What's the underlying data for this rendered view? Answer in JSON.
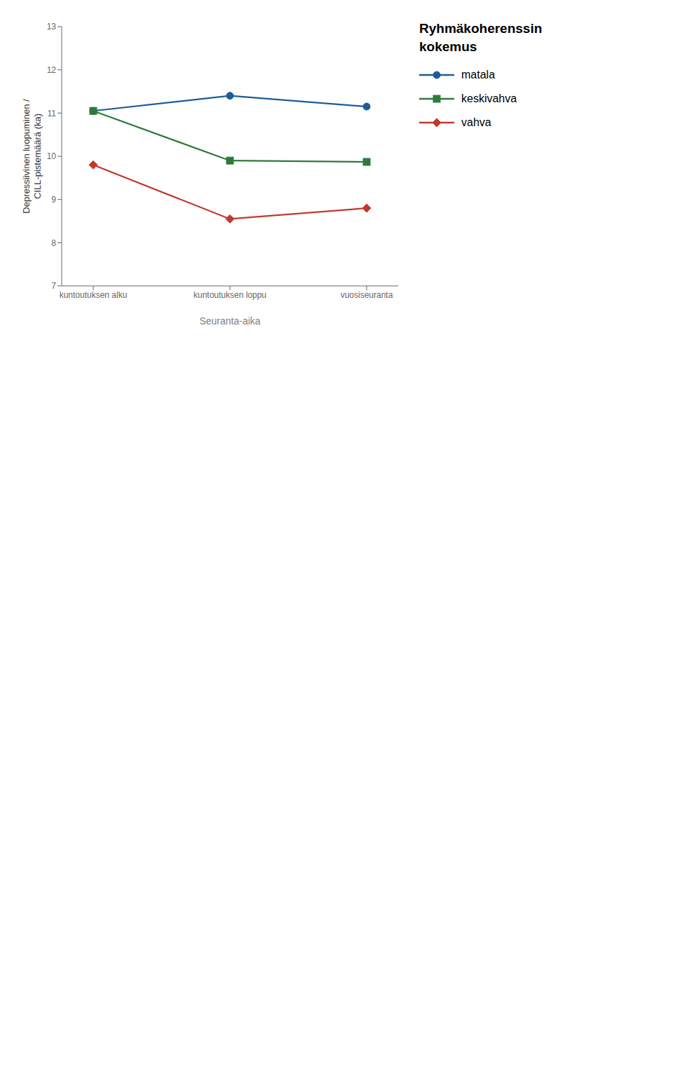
{
  "chart_data": {
    "type": "line",
    "title": "Ryhmäkoherenssin\nkokemus",
    "xlabel": "Seuranta-aika",
    "ylabel": "Depressiivinen luopuminen /\nCILL-pistemäärä (ka)",
    "categories": [
      "kuntoutuksen alku",
      "kuntoutuksen loppu",
      "vuosiseuranta"
    ],
    "series": [
      {
        "name": "matala",
        "color": "#1b5c99",
        "values": [
          11.05,
          11.4,
          11.15
        ],
        "marker": "circle"
      },
      {
        "name": "keskivahva",
        "color": "#2d7a3a",
        "values": [
          11.05,
          9.9,
          9.87
        ],
        "marker": "square"
      },
      {
        "name": "vahva",
        "color": "#c0392b",
        "values": [
          9.8,
          8.55,
          8.8
        ],
        "marker": "diamond"
      }
    ],
    "ylim": [
      7,
      13
    ],
    "yticks": [
      7,
      8,
      9,
      10,
      11,
      12,
      13
    ],
    "grid": false,
    "legend": "right"
  }
}
